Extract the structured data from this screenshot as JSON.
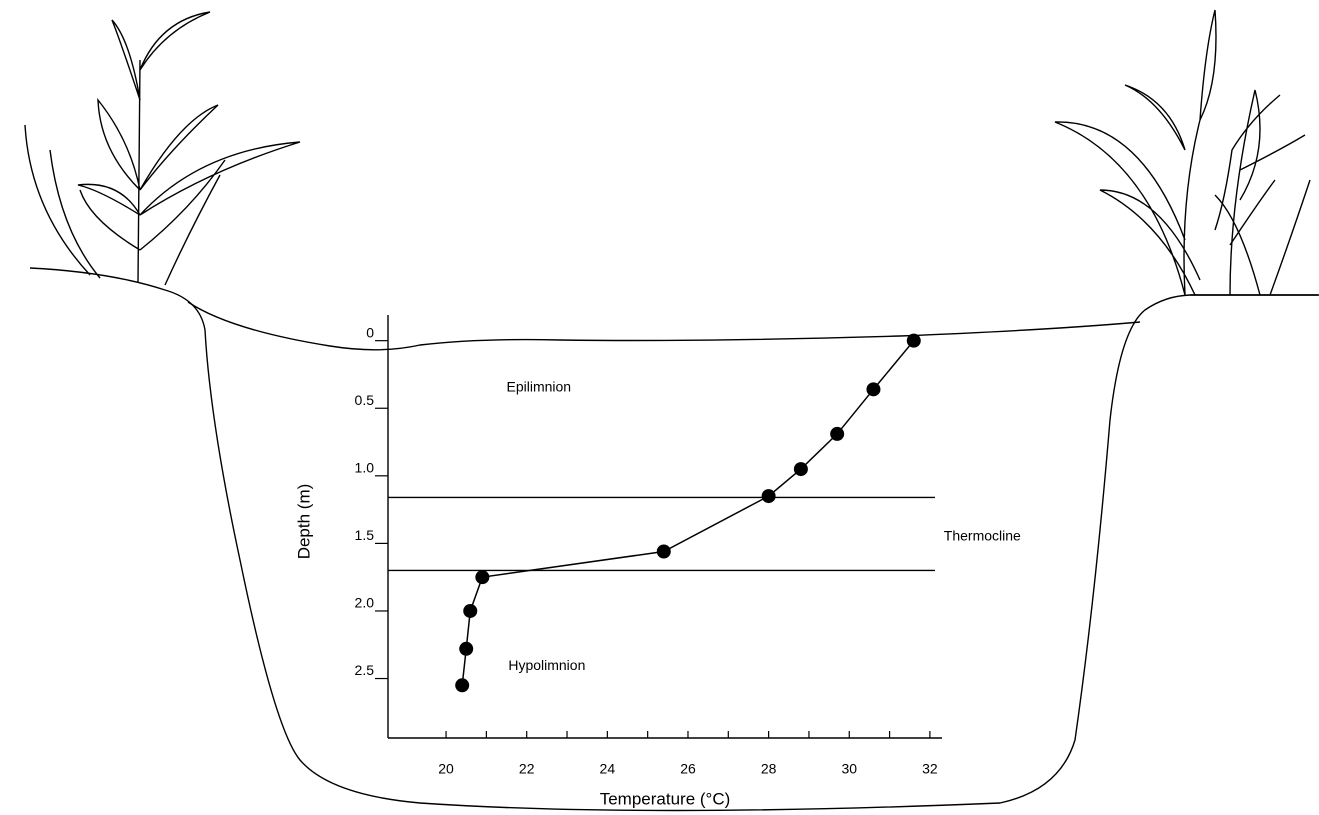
{
  "chart_data": {
    "type": "line",
    "x_label": "Temperature (°C)",
    "y_label": "Depth (m)",
    "series": [
      {
        "color": "#000000",
        "x": [
          31.6,
          30.6,
          29.7,
          28.8,
          28.0,
          25.4,
          20.9,
          20.6,
          20.5,
          20.4
        ],
        "values": [
          0,
          0.36,
          0.69,
          0.95,
          1.15,
          1.56,
          1.75,
          2.0,
          2.28,
          2.55
        ]
      }
    ],
    "xlim": [
      18.56,
      32.3
    ],
    "xticks": [
      20,
      22,
      24,
      26,
      28,
      30,
      32
    ],
    "xminor_ticks": [
      21,
      23,
      25,
      27,
      29,
      31
    ],
    "ylim": [
      -0.19,
      2.94
    ],
    "y_inverted": true,
    "yticks": [
      0,
      0.5,
      {
        "value": 1,
        "label": "1.0"
      },
      1.5,
      {
        "value": 2,
        "label": "2.0"
      },
      2.5
    ],
    "layer_boundaries": [
      1.16,
      1.7
    ],
    "annotations": [
      {
        "text": "Epilimnion",
        "x": 22.3,
        "y": 0.35
      },
      {
        "text": "Thermocline",
        "x": 33.3,
        "y": 1.45
      },
      {
        "text": "Hypolimnion",
        "x": 22.5,
        "y": 2.41
      }
    ]
  }
}
